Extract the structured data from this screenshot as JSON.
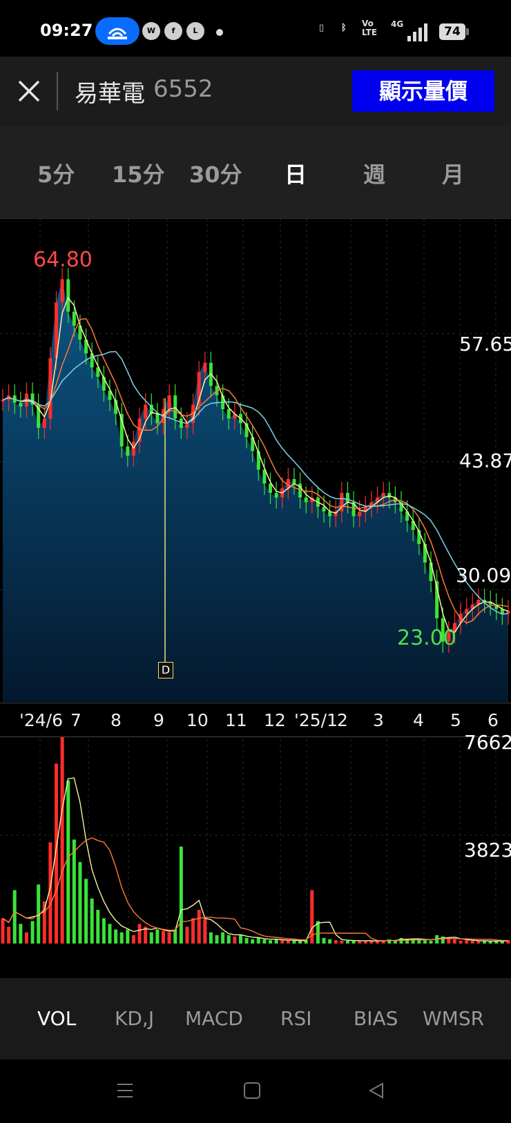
{
  "status_bar": {
    "time": "09:27",
    "battery": "74",
    "network": "4G",
    "volte": "Vo LTE"
  },
  "header": {
    "stock_name": "易華電",
    "stock_code": "6552",
    "show_button": "顯示量價"
  },
  "period_tabs": [
    "5分",
    "15分",
    "30分",
    "日",
    "週",
    "月"
  ],
  "active_period": "日",
  "price_chart": {
    "high_label": "64.80",
    "low_label": "23.00",
    "y_labels": [
      "57.65",
      "43.87",
      "30.09"
    ],
    "marker": "D",
    "x_labels": [
      "'24/6",
      "7",
      "8",
      "9",
      "10",
      "11",
      "12",
      "'25/1",
      "2",
      "3",
      "4",
      "5",
      "6"
    ]
  },
  "volume_chart": {
    "y_labels": [
      "7662",
      "3823"
    ]
  },
  "indicator_tabs": [
    "VOL",
    "KD,J",
    "MACD",
    "RSI",
    "BIAS",
    "WMSR"
  ],
  "active_indicator": "VOL",
  "colors": {
    "up": "#ff2d2d",
    "down": "#39e33a",
    "accent": "#0000ee",
    "high": "#ff4a4a",
    "low": "#4de04d"
  },
  "chart_data": {
    "type": "line",
    "title": "",
    "ylim": [
      18,
      70
    ],
    "ticks": [
      57.65,
      43.87,
      30.09
    ],
    "high": 64.8,
    "low": 23.0,
    "months": [
      "'24/6",
      "7",
      "8",
      "9",
      "10",
      "11",
      "12",
      "'25/1",
      "2",
      "3",
      "4",
      "5",
      "6"
    ],
    "close": [
      50.5,
      51.0,
      50.2,
      49.8,
      51.2,
      50.0,
      47.5,
      48.5,
      55.0,
      61.0,
      63.5,
      60.0,
      58.5,
      57.0,
      55.5,
      54.0,
      53.0,
      51.5,
      50.5,
      49.0,
      45.5,
      44.5,
      46.0,
      48.5,
      50.0,
      49.0,
      48.0,
      49.5,
      51.0,
      48.5,
      47.5,
      48.0,
      50.0,
      53.5,
      54.5,
      52.0,
      51.0,
      49.5,
      48.5,
      49.0,
      48.0,
      46.5,
      45.0,
      43.0,
      41.5,
      40.5,
      40.0,
      41.0,
      42.0,
      41.5,
      40.0,
      39.5,
      40.0,
      39.0,
      38.5,
      38.0,
      38.5,
      40.5,
      39.5,
      38.0,
      38.5,
      39.0,
      39.5,
      40.0,
      40.5,
      40.0,
      39.5,
      38.5,
      37.5,
      36.5,
      35.0,
      33.0,
      31.0,
      27.0,
      24.5,
      25.5,
      26.5,
      27.5,
      28.0,
      28.5,
      29.0,
      28.8,
      28.5,
      28.0,
      27.5,
      27.8
    ],
    "volume": [
      900,
      600,
      1900,
      700,
      400,
      800,
      2100,
      1500,
      3600,
      6400,
      7662,
      5800,
      3700,
      2900,
      2300,
      1600,
      1200,
      900,
      700,
      500,
      400,
      500,
      300,
      700,
      600,
      400,
      500,
      450,
      400,
      500,
      3450,
      600,
      900,
      1200,
      900,
      400,
      300,
      400,
      300,
      250,
      300,
      200,
      150,
      200,
      150,
      120,
      150,
      120,
      100,
      100,
      90,
      120,
      1900,
      800,
      200,
      150,
      120,
      100,
      100,
      100,
      100,
      100,
      90,
      80,
      100,
      150,
      120,
      200,
      150,
      180,
      140,
      120,
      100,
      300,
      250,
      200,
      150,
      100,
      120,
      100,
      90,
      80,
      80,
      100,
      90,
      120
    ]
  }
}
